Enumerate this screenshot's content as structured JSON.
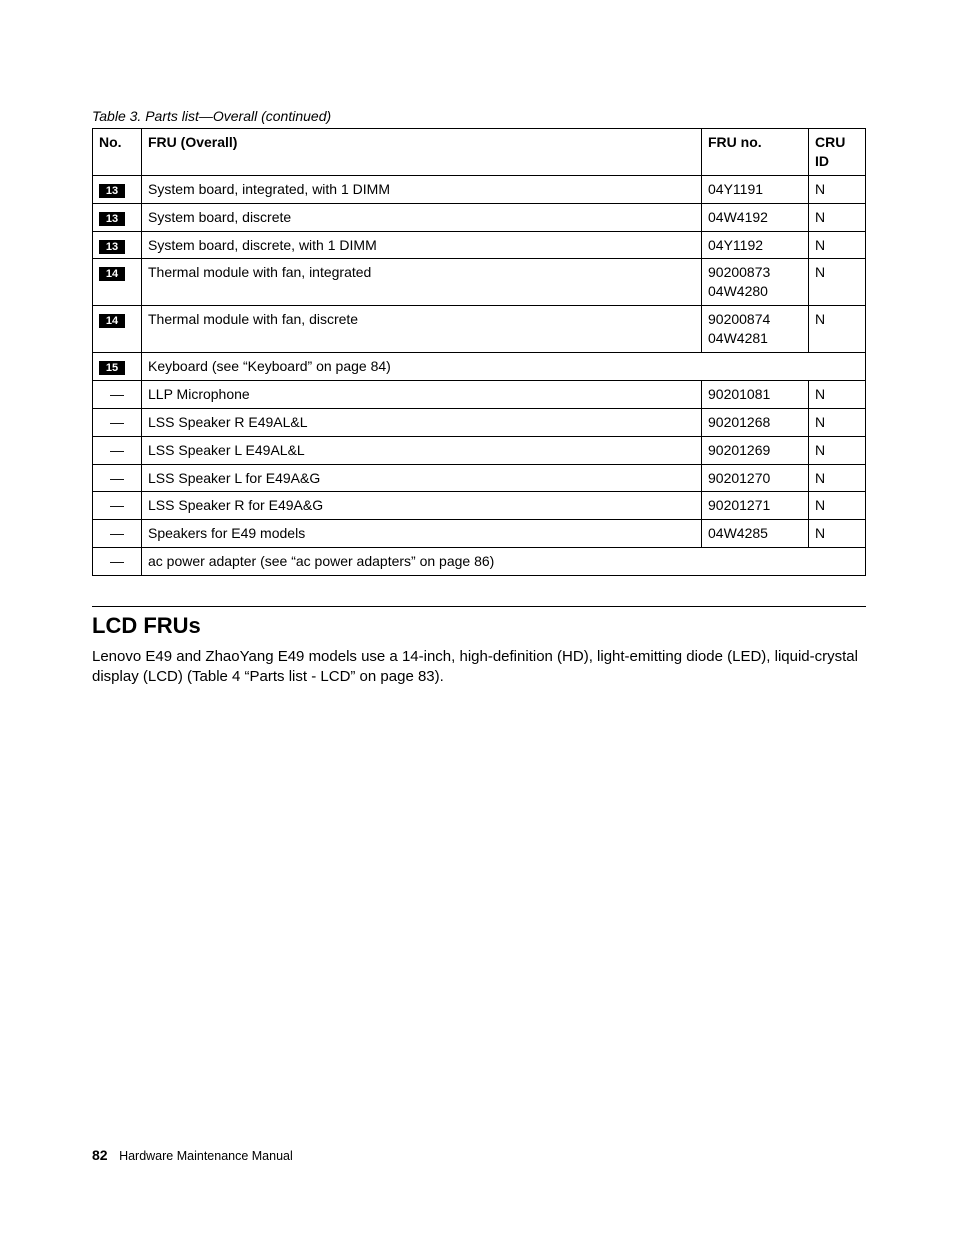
{
  "caption": "Table 3.  Parts list—Overall (continued)",
  "headers": {
    "no": "No.",
    "desc": "FRU (Overall)",
    "fru": "FRU no.",
    "cru": "CRU ID"
  },
  "rows": [
    {
      "badge": "13",
      "desc": "System board, integrated, with 1 DIMM",
      "fru": "04Y1191",
      "cru": "N"
    },
    {
      "badge": "13",
      "desc": "System board, discrete",
      "fru": "04W4192",
      "cru": "N"
    },
    {
      "badge": "13",
      "desc": "System board, discrete, with 1 DIMM",
      "fru": "04Y1192",
      "cru": "N"
    },
    {
      "badge": "14",
      "desc": "Thermal module with fan, integrated",
      "fru": "90200873 04W4280",
      "cru": "N"
    },
    {
      "badge": "14",
      "desc": "Thermal module with fan, discrete",
      "fru": "90200874 04W4281",
      "cru": "N"
    },
    {
      "badge": "15",
      "desc": "Keyboard (see “Keyboard” on page 84)",
      "span": true
    },
    {
      "badge": "—",
      "desc": "LLP Microphone",
      "fru": "90201081",
      "cru": "N"
    },
    {
      "badge": "—",
      "desc": "LSS Speaker R E49AL&L",
      "fru": "90201268",
      "cru": "N"
    },
    {
      "badge": "—",
      "desc": "LSS Speaker L E49AL&L",
      "fru": "90201269",
      "cru": "N"
    },
    {
      "badge": "—",
      "desc": "LSS Speaker L for E49A&G",
      "fru": "90201270",
      "cru": "N"
    },
    {
      "badge": "—",
      "desc": "LSS Speaker R for E49A&G",
      "fru": "90201271",
      "cru": "N"
    },
    {
      "badge": "—",
      "desc": "Speakers for E49 models",
      "fru": "04W4285",
      "cru": "N"
    },
    {
      "badge": "—",
      "desc": "ac power adapter (see “ac power adapters” on page 86)",
      "span": true
    }
  ],
  "section": {
    "title": "LCD FRUs",
    "body": "Lenovo E49 and ZhaoYang E49 models use a 14-inch, high-definition (HD), light-emitting diode (LED), liquid-crystal display (LCD) (Table 4 “Parts list - LCD” on page 83)."
  },
  "footer": {
    "page": "82",
    "title": "Hardware Maintenance Manual"
  }
}
